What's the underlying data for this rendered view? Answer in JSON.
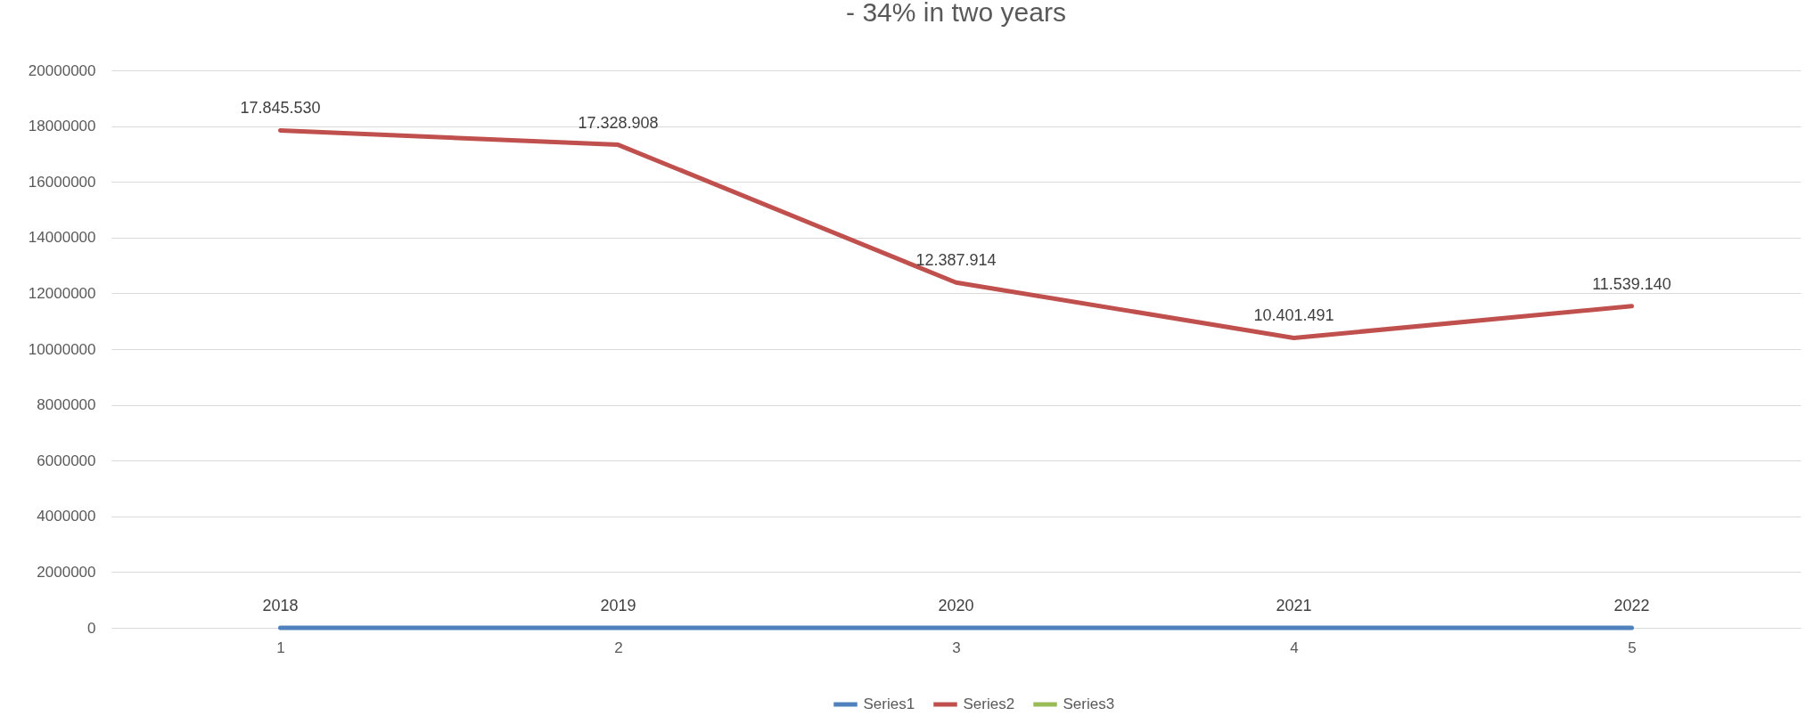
{
  "chart_data": {
    "type": "line",
    "title": "- 34% in two years",
    "categories": [
      "1",
      "2",
      "3",
      "4",
      "5"
    ],
    "series": [
      {
        "name": "Series1",
        "color": "#4f81bd",
        "values": [
          2018,
          2019,
          2020,
          2021,
          2022
        ],
        "value_labels": [
          "2018",
          "2019",
          "2020",
          "2021",
          "2022"
        ]
      },
      {
        "name": "Series2",
        "color": "#c0504d",
        "values": [
          17845530,
          17328908,
          12387914,
          10401491,
          11539140
        ],
        "value_labels": [
          "17.845.530",
          "17.328.908",
          "12.387.914",
          "10.401.491",
          "11.539.140"
        ]
      },
      {
        "name": "Series3",
        "color": "#9bbb59",
        "values": [
          null,
          null,
          null,
          null,
          null
        ]
      }
    ],
    "ylim": [
      0,
      20000000
    ],
    "yticks": [
      0,
      2000000,
      4000000,
      6000000,
      8000000,
      10000000,
      12000000,
      14000000,
      16000000,
      18000000,
      20000000
    ],
    "grid": "y",
    "legend": "bottom",
    "marker": "none"
  }
}
